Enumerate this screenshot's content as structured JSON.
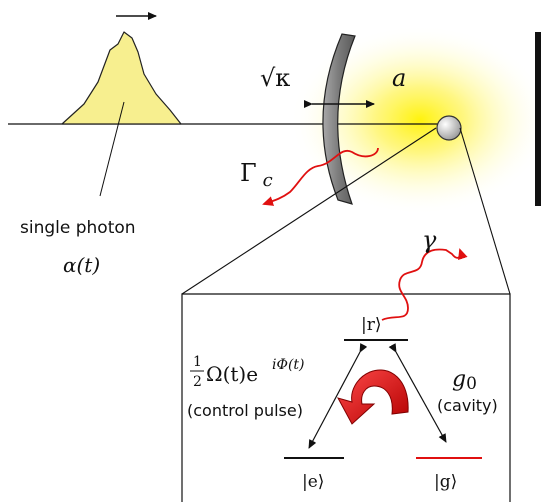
{
  "labels": {
    "photon": "single photon",
    "photon_envelope": "α(t)",
    "sqrt_kappa": "√κ",
    "cavity_mode": "a",
    "cavity_decay": "Γc",
    "spont_emission": "γ",
    "state_r": "|r⟩",
    "state_e": "|e⟩",
    "state_g": "|g⟩",
    "half": "1",
    "two": "2",
    "control_omega": "Ω(t)e",
    "control_phase": "iΦ(t)",
    "control_caption": "(control pulse)",
    "coupling": "g0",
    "cavity_caption": "(cavity)"
  },
  "colors": {
    "photon_fill": "#f7ef8f",
    "glow": "#ffee33",
    "mirror": "#777777",
    "red": "#e01010",
    "arrow_dark": "#b00000",
    "arrow_light": "#f03030"
  }
}
